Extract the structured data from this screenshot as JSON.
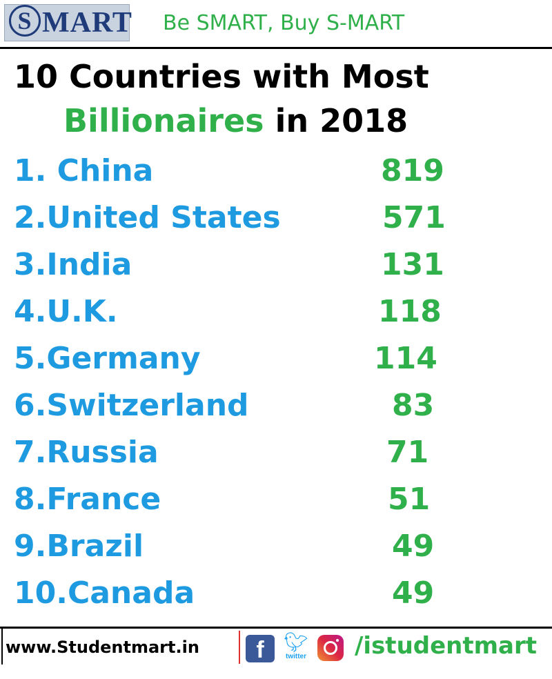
{
  "header": {
    "logo_initial": "S",
    "logo_rest": "MART",
    "slogan": "Be SMART, Buy S-MART"
  },
  "title": {
    "line1": "10 Countries with Most",
    "line2_highlight": "Billionaires",
    "line2_rest": " in 2018"
  },
  "countries": [
    {
      "label": "1. China",
      "value": "819"
    },
    {
      "label": "2.United States",
      "value": "571"
    },
    {
      "label": "3.India",
      "value": "131"
    },
    {
      "label": "4.U.K.",
      "value": "118"
    },
    {
      "label": "5.Germany",
      "value": "114"
    },
    {
      "label": "6.Switzerland",
      "value": "83"
    },
    {
      "label": "7.Russia",
      "value": "71"
    },
    {
      "label": "8.France",
      "value": "51"
    },
    {
      "label": "9.Brazil",
      "value": "49"
    },
    {
      "label": "10.Canada",
      "value": "49"
    }
  ],
  "footer": {
    "website": "www.Studentmart.in",
    "twitter_label": "twitter",
    "social_handle": "/istudentmart"
  },
  "colors": {
    "country_blue": "#1e9be0",
    "value_green": "#2fb04a",
    "logo_navy": "#1f3b7a"
  },
  "icons": [
    "facebook-icon",
    "twitter-icon",
    "instagram-icon"
  ]
}
